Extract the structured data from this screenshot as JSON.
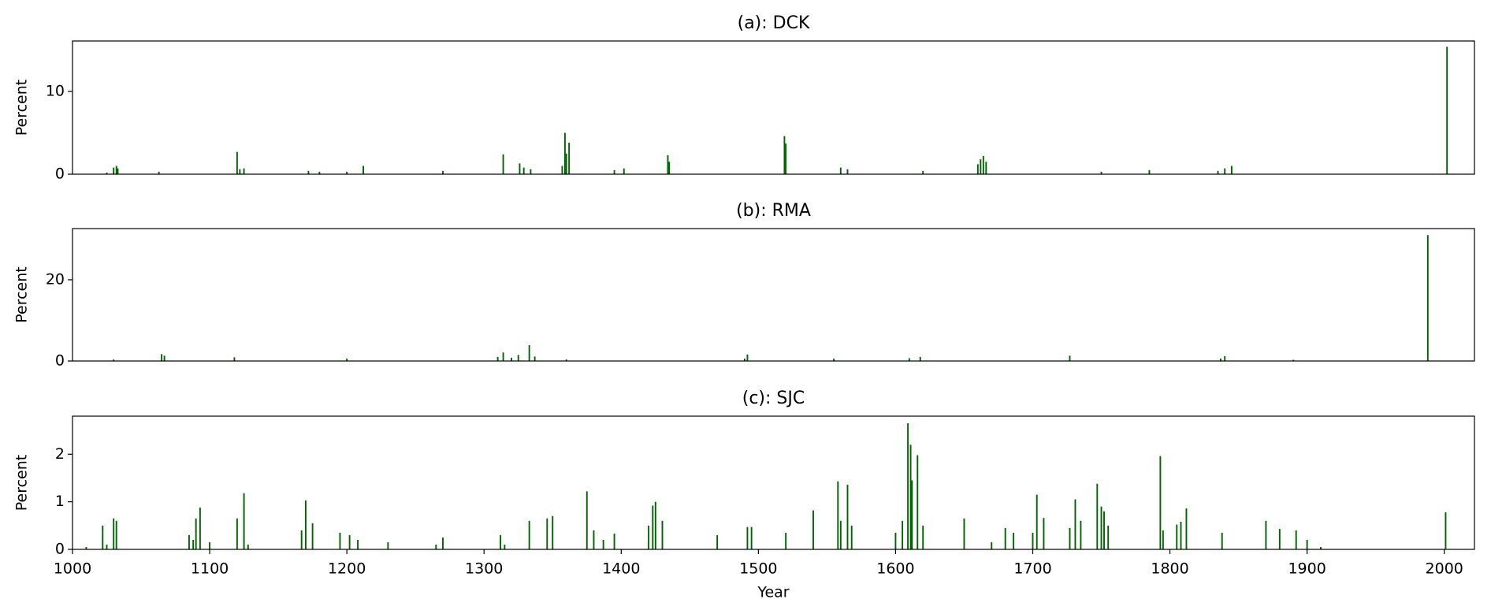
{
  "chart_data": [
    {
      "type": "bar",
      "title": "(a): DCK",
      "ylabel": "Percent",
      "color": "#006400",
      "xlim": [
        1000,
        2022
      ],
      "ylim": [
        0,
        16.1
      ],
      "yticks": [
        0,
        10
      ],
      "x": [
        1025,
        1030,
        1032,
        1033,
        1063,
        1120,
        1122,
        1125,
        1172,
        1180,
        1200,
        1212,
        1270,
        1314,
        1326,
        1329,
        1334,
        1357,
        1359,
        1360,
        1362,
        1395,
        1402,
        1434,
        1435,
        1519,
        1520,
        1560,
        1565,
        1620,
        1660,
        1662,
        1664,
        1666,
        1750,
        1785,
        1835,
        1840,
        1845,
        2002
      ],
      "values": [
        0.2,
        0.8,
        1.0,
        0.7,
        0.3,
        2.7,
        0.6,
        0.7,
        0.4,
        0.3,
        0.3,
        1.0,
        0.4,
        2.4,
        1.3,
        0.8,
        0.6,
        1.0,
        5.0,
        2.5,
        3.8,
        0.5,
        0.7,
        2.3,
        1.5,
        4.6,
        3.7,
        0.8,
        0.6,
        0.4,
        1.2,
        1.8,
        2.2,
        1.5,
        0.3,
        0.5,
        0.4,
        0.7,
        1.0,
        15.4
      ]
    },
    {
      "type": "bar",
      "title": "(b): RMA",
      "ylabel": "Percent",
      "color": "#006400",
      "xlim": [
        1000,
        2022
      ],
      "ylim": [
        0,
        32.6
      ],
      "yticks": [
        0,
        20
      ],
      "x": [
        1030,
        1065,
        1067,
        1118,
        1200,
        1310,
        1314,
        1320,
        1325,
        1333,
        1337,
        1360,
        1490,
        1492,
        1555,
        1610,
        1618,
        1727,
        1837,
        1840,
        1890,
        1988
      ],
      "values": [
        0.4,
        1.7,
        1.3,
        0.9,
        0.6,
        1.0,
        2.1,
        0.8,
        1.5,
        3.9,
        1.1,
        0.4,
        0.6,
        1.6,
        0.6,
        0.7,
        1.0,
        1.3,
        0.6,
        1.2,
        0.3,
        31
      ]
    },
    {
      "type": "bar",
      "title": "(c): SJC",
      "ylabel": "Percent",
      "xlabel": "Year",
      "color": "#006400",
      "xlim": [
        1000,
        2022
      ],
      "ylim": [
        0,
        2.8
      ],
      "yticks": [
        0,
        1,
        2
      ],
      "xticks": [
        1000,
        1100,
        1200,
        1300,
        1400,
        1500,
        1600,
        1700,
        1800,
        1900,
        2000
      ],
      "x": [
        1010,
        1022,
        1025,
        1030,
        1032,
        1085,
        1088,
        1090,
        1093,
        1100,
        1120,
        1125,
        1128,
        1167,
        1170,
        1175,
        1195,
        1202,
        1208,
        1230,
        1265,
        1270,
        1312,
        1315,
        1333,
        1346,
        1350,
        1375,
        1380,
        1387,
        1395,
        1420,
        1423,
        1425,
        1430,
        1470,
        1492,
        1495,
        1520,
        1540,
        1558,
        1560,
        1565,
        1568,
        1600,
        1605,
        1609,
        1611,
        1612,
        1616,
        1620,
        1650,
        1670,
        1680,
        1686,
        1700,
        1703,
        1708,
        1727,
        1731,
        1735,
        1747,
        1750,
        1752,
        1755,
        1793,
        1795,
        1805,
        1808,
        1812,
        1838,
        1870,
        1880,
        1892,
        1900,
        1910,
        2001
      ],
      "values": [
        0.05,
        0.5,
        0.1,
        0.65,
        0.6,
        0.3,
        0.2,
        0.65,
        0.88,
        0.15,
        0.65,
        1.18,
        0.1,
        0.4,
        1.03,
        0.55,
        0.35,
        0.3,
        0.2,
        0.15,
        0.1,
        0.25,
        0.3,
        0.1,
        0.6,
        0.65,
        0.7,
        1.22,
        0.4,
        0.2,
        0.33,
        0.5,
        0.92,
        1.0,
        0.6,
        0.3,
        0.47,
        0.47,
        0.35,
        0.82,
        1.43,
        0.6,
        1.36,
        0.5,
        0.35,
        0.6,
        2.65,
        2.2,
        1.45,
        1.98,
        0.5,
        0.65,
        0.15,
        0.45,
        0.35,
        0.35,
        1.15,
        0.66,
        0.45,
        1.05,
        0.6,
        1.38,
        0.9,
        0.8,
        0.5,
        1.96,
        0.4,
        0.52,
        0.58,
        0.86,
        0.35,
        0.6,
        0.43,
        0.4,
        0.2,
        0.05,
        0.78
      ]
    }
  ]
}
